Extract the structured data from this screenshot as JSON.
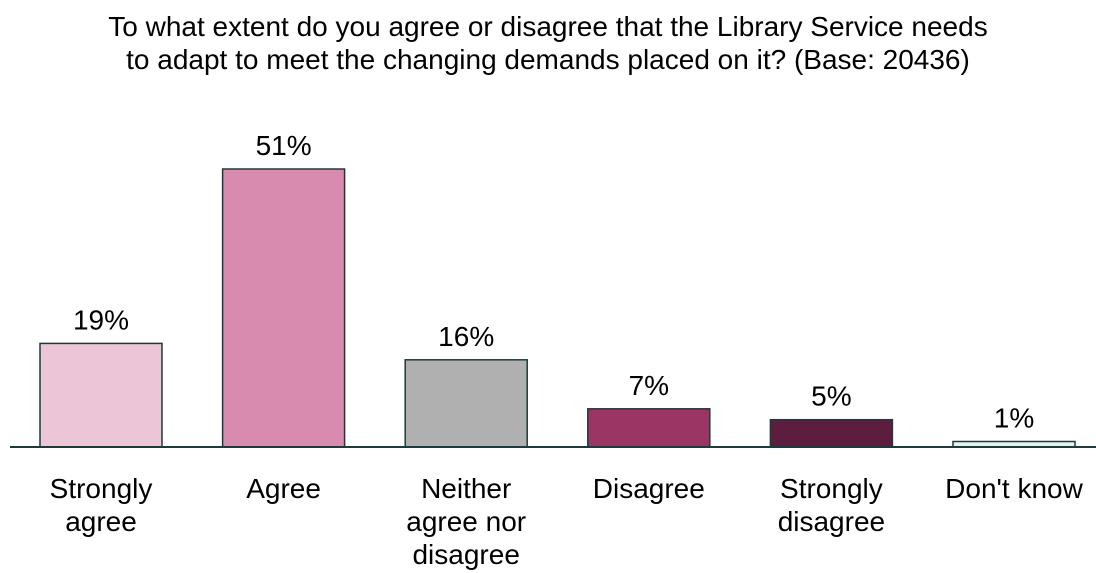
{
  "chart_data": {
    "type": "bar",
    "title": "To what extent do you agree or disagree that the Library Service needs to adapt to meet the changing demands placed on it? (Base: 20436)",
    "categories": [
      [
        "Strongly",
        "agree"
      ],
      [
        "Agree"
      ],
      [
        "Neither",
        "agree nor",
        "disagree"
      ],
      [
        "Disagree"
      ],
      [
        "Strongly",
        "disagree"
      ],
      [
        "Don't know"
      ]
    ],
    "values": [
      19,
      51,
      16,
      7,
      5,
      1
    ],
    "data_labels": [
      "19%",
      "51%",
      "16%",
      "7%",
      "5%",
      "1%"
    ],
    "colors": [
      "#ecc5d7",
      "#d98aaf",
      "#b0b0b0",
      "#9b3563",
      "#5c1d3e",
      "#e8f3f0"
    ],
    "ylim": [
      0,
      51
    ],
    "grid": false,
    "legend": "none"
  }
}
